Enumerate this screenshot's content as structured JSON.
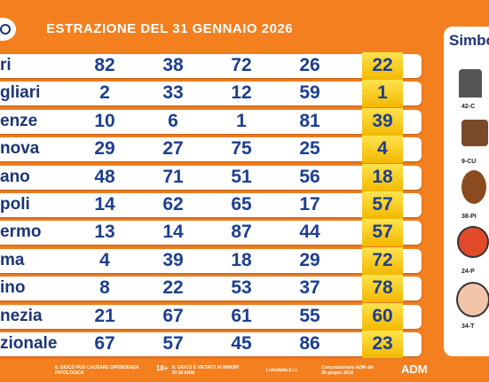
{
  "header": {
    "title": "ESTRAZIONE DEL 31 GENNAIO 2026"
  },
  "table": {
    "rows": [
      [
        "ri",
        82,
        38,
        72,
        26,
        22
      ],
      [
        "gliari",
        2,
        33,
        12,
        59,
        1
      ],
      [
        "enze",
        10,
        6,
        1,
        81,
        39
      ],
      [
        "nova",
        29,
        27,
        75,
        25,
        4
      ],
      [
        "ano",
        48,
        71,
        51,
        56,
        18
      ],
      [
        "poli",
        14,
        62,
        65,
        17,
        57
      ],
      [
        "ermo",
        13,
        14,
        87,
        44,
        57
      ],
      [
        "ma",
        4,
        39,
        18,
        29,
        72
      ],
      [
        "ino",
        8,
        22,
        53,
        37,
        78
      ],
      [
        "nezia",
        21,
        67,
        61,
        55,
        60
      ],
      [
        "zionale",
        67,
        57,
        45,
        86,
        23
      ]
    ]
  },
  "side_panel": {
    "title": "Simbo",
    "items": [
      "42-C",
      "9-CU",
      "38-PI",
      "24-P",
      "34-T"
    ]
  },
  "footer": {
    "warning": "IL GIOCO PUÒ CAUSARE DIPENDENZA PATOLOGICA",
    "age": "18+",
    "minors": "IL GIOCO È VIETATO AI MINORI DI 18 ANNI",
    "company": "Lottoitalia S.r.l.",
    "concession": "Concessionario ADM dal 30 giugno 2016",
    "adm": "ADM"
  }
}
